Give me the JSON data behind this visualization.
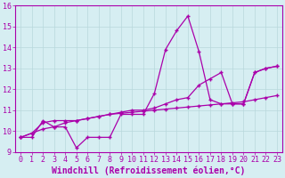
{
  "xlabel": "Windchill (Refroidissement éolien,°C)",
  "xlim": [
    -0.5,
    23.5
  ],
  "ylim": [
    9,
    16
  ],
  "xticks": [
    0,
    1,
    2,
    3,
    4,
    5,
    6,
    7,
    8,
    9,
    10,
    11,
    12,
    13,
    14,
    15,
    16,
    17,
    18,
    19,
    20,
    21,
    22,
    23
  ],
  "yticks": [
    9,
    10,
    11,
    12,
    13,
    14,
    15,
    16
  ],
  "bg_color": "#d6eef2",
  "line_color": "#aa00aa",
  "grid_color": "#b8d8dc",
  "line1_y": [
    9.7,
    9.7,
    10.5,
    10.2,
    10.2,
    9.2,
    9.7,
    9.7,
    9.7,
    10.8,
    10.8,
    10.8,
    11.8,
    13.9,
    14.8,
    15.5,
    13.8,
    11.5,
    11.3,
    11.3,
    11.3,
    12.8,
    13.0,
    13.1
  ],
  "line2_y": [
    9.7,
    9.9,
    10.1,
    10.2,
    10.4,
    10.5,
    10.6,
    10.7,
    10.8,
    10.85,
    10.9,
    10.95,
    11.0,
    11.05,
    11.1,
    11.15,
    11.2,
    11.25,
    11.3,
    11.35,
    11.4,
    11.5,
    11.6,
    11.7
  ],
  "line3_y": [
    9.7,
    9.9,
    10.4,
    10.5,
    10.5,
    10.5,
    10.6,
    10.7,
    10.8,
    10.9,
    11.0,
    11.0,
    11.1,
    11.3,
    11.5,
    11.6,
    12.2,
    12.5,
    12.8,
    11.3,
    11.3,
    12.8,
    13.0,
    13.1
  ],
  "font_size_tick": 6,
  "font_size_label": 7
}
